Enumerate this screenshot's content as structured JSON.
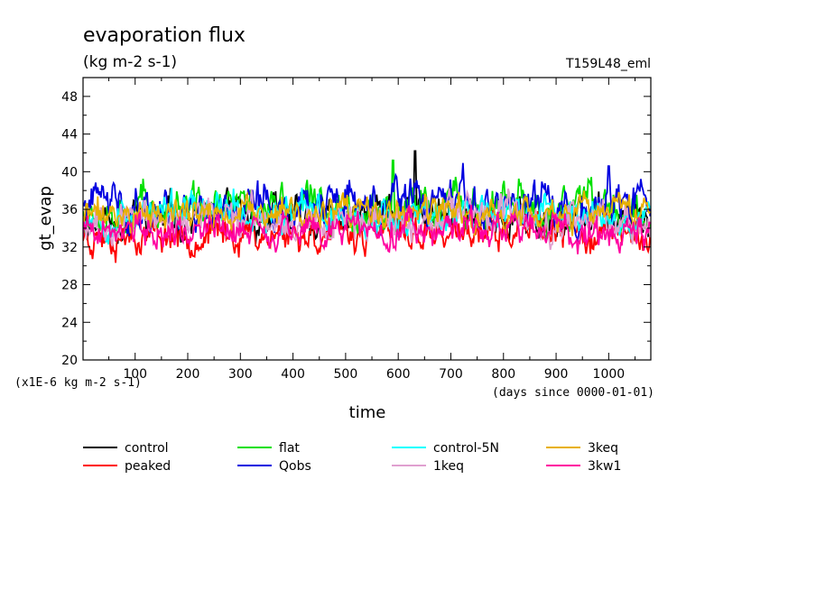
{
  "chart_data": {
    "type": "line",
    "title": "evaporation flux",
    "units": "(kg m-2 s-1)",
    "run_label": "T159L48_eml",
    "ylabel": "gt_evap",
    "xlabel": "time",
    "x_unit_note": "(days since 0000-01-01)",
    "y_scale_note": "(x1E-6 kg m-2 s-1)",
    "xlim": [
      1,
      1080
    ],
    "ylim": [
      20,
      50
    ],
    "x_ticks": [
      100,
      200,
      300,
      400,
      500,
      600,
      700,
      800,
      900,
      1000
    ],
    "y_ticks": [
      20,
      24,
      28,
      32,
      36,
      40,
      44,
      48
    ],
    "grid": false,
    "legend_position": "bottom",
    "series_stats_note": "daily series, values fluctuate roughly between 30 and 42",
    "series": [
      {
        "name": "control",
        "color": "#000000",
        "mean": 35.0,
        "amp": 2.2,
        "seed": 11,
        "spike": {
          "day": 632,
          "value": 42.2
        }
      },
      {
        "name": "peaked",
        "color": "#ff0000",
        "mean": 33.4,
        "amp": 1.9,
        "seed": 23
      },
      {
        "name": "flat",
        "color": "#00e000",
        "mean": 36.2,
        "amp": 2.3,
        "seed": 37,
        "spike": {
          "day": 590,
          "value": 41.2
        }
      },
      {
        "name": "Qobs",
        "color": "#0000e0",
        "mean": 36.4,
        "amp": 2.5,
        "seed": 41,
        "spike": {
          "day": 1000,
          "value": 40.6
        }
      },
      {
        "name": "control-5N",
        "color": "#00ffff",
        "mean": 35.5,
        "amp": 2.0,
        "seed": 53
      },
      {
        "name": "1keq",
        "color": "#e0a0d0",
        "mean": 35.0,
        "amp": 2.0,
        "seed": 67
      },
      {
        "name": "3keq",
        "color": "#e8b000",
        "mean": 35.4,
        "amp": 1.8,
        "seed": 71
      },
      {
        "name": "3kw1",
        "color": "#ff00a0",
        "mean": 33.8,
        "amp": 1.9,
        "seed": 89
      }
    ]
  }
}
